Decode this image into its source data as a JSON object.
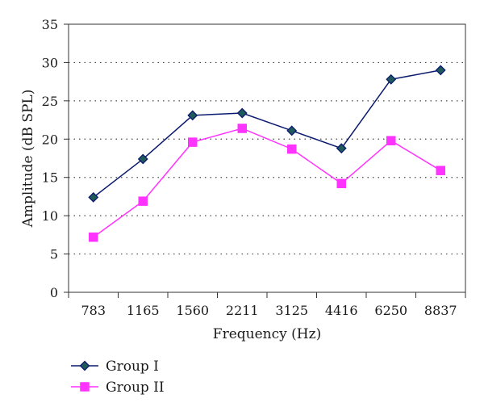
{
  "chart_data": {
    "type": "line",
    "xlabel": "Frequency (Hz)",
    "ylabel": "Amplitude (dB SPL)",
    "categories": [
      "783",
      "1165",
      "1560",
      "2211",
      "3125",
      "4416",
      "6250",
      "8837"
    ],
    "ylim": [
      0,
      35
    ],
    "yticks": [
      0,
      5,
      10,
      15,
      20,
      25,
      30,
      35
    ],
    "grid": "horizontal-dotted",
    "legend_position": "bottom-left",
    "series": [
      {
        "name": "Group I",
        "values": [
          12.4,
          17.4,
          23.1,
          23.4,
          21.1,
          18.8,
          27.8,
          29.0
        ],
        "color": "#0b1a6e",
        "marker": "diamond",
        "marker_fill": "#1f5a5a"
      },
      {
        "name": "Group II",
        "values": [
          7.2,
          11.9,
          19.6,
          21.4,
          18.7,
          14.2,
          19.8,
          15.9
        ],
        "color": "#ff33ff",
        "marker": "square",
        "marker_fill": "#ff33ff"
      }
    ]
  }
}
